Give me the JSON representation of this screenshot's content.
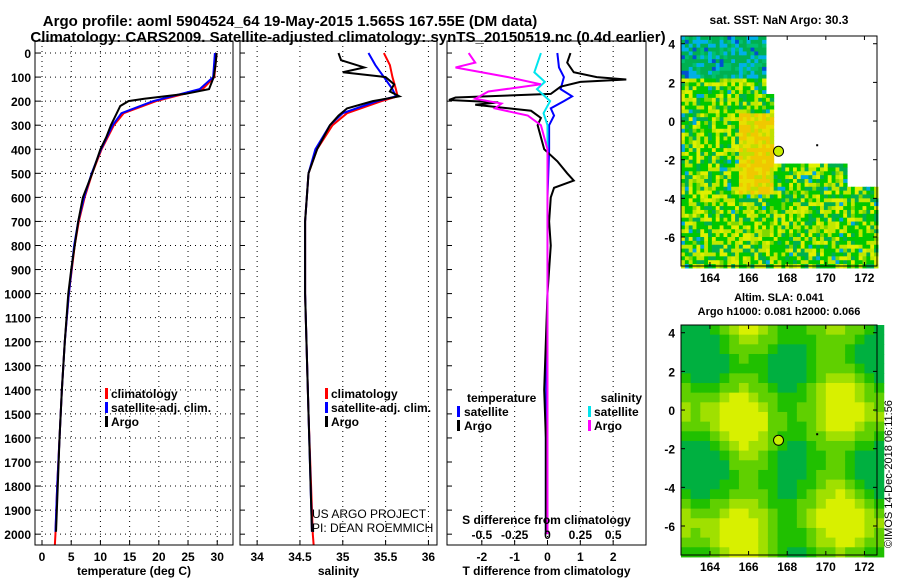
{
  "title_line1": "Argo profile: aoml 5904524_64 19-May-2015 1.565S 167.55E (DM data)",
  "title_line2": "Climatology: CARS2009. Satellite-adjusted climatology: synTS_20150519.nc (0.4d earlier)",
  "credit": "©IMOS 14-Dec-2018 06:11:56",
  "colors": {
    "argo": "#000000",
    "climatology": "#ff0000",
    "satellite": "#0000ff",
    "sal_sat": "#00e5ee",
    "sal_argo": "#ff00ff"
  },
  "chart_data": [
    {
      "type": "line",
      "xlabel": "temperature (deg C)",
      "ylabel": "",
      "xlim": [
        -1.2,
        32.7
      ],
      "ylim": [
        2045,
        -50
      ],
      "xticks": [
        0,
        5,
        10,
        15,
        20,
        25,
        30
      ],
      "yticks": [
        0,
        100,
        200,
        300,
        400,
        500,
        600,
        700,
        800,
        900,
        1000,
        1100,
        1200,
        1300,
        1400,
        1500,
        1600,
        1700,
        1800,
        1900,
        2000
      ],
      "legend": [
        "climatology",
        "satellite-adj. clim.",
        "Argo"
      ],
      "legend_position": "lower-middle",
      "series": [
        {
          "name": "climatology",
          "color": "#ff0000",
          "depth": [
            0,
            100,
            150,
            200,
            250,
            300,
            400,
            500,
            600,
            700,
            800,
            1000,
            1200,
            1400,
            1600,
            1800,
            2000,
            2045
          ],
          "values": [
            29.9,
            29.5,
            27.5,
            19.5,
            14.0,
            12.3,
            10.2,
            8.6,
            7.3,
            6.3,
            5.6,
            4.6,
            3.9,
            3.4,
            3.0,
            2.6,
            2.3,
            2.2
          ]
        },
        {
          "name": "satellite-adj. clim.",
          "color": "#0000ff",
          "depth": [
            0,
            100,
            150,
            200,
            250,
            300,
            400,
            500,
            600,
            700,
            800,
            1000,
            1200,
            1400,
            1600,
            1800,
            1990
          ],
          "values": [
            29.6,
            29.3,
            27.0,
            19.0,
            13.6,
            12.1,
            10.1,
            8.5,
            7.2,
            6.2,
            5.5,
            4.6,
            3.9,
            3.4,
            3.0,
            2.6,
            2.3
          ]
        },
        {
          "name": "Argo",
          "color": "#000000",
          "depth": [
            0,
            50,
            100,
            150,
            170,
            190,
            200,
            220,
            250,
            300,
            350,
            400,
            500,
            600,
            700,
            800,
            900,
            1000,
            1200,
            1400,
            1600,
            1800,
            1990
          ],
          "values": [
            29.9,
            29.7,
            29.4,
            28.6,
            24.5,
            17.5,
            14.8,
            13.4,
            12.8,
            11.8,
            11.0,
            10.0,
            8.6,
            7.0,
            6.2,
            5.6,
            5.0,
            4.5,
            3.9,
            3.4,
            3.0,
            2.7,
            2.4
          ]
        }
      ]
    },
    {
      "type": "line",
      "xlabel": "salinity",
      "xlim": [
        33.8,
        36.1
      ],
      "ylim": [
        2045,
        -50
      ],
      "xticks": [
        34,
        34.5,
        35,
        35.5,
        36
      ],
      "xtick_labels": [
        "34",
        "34.5",
        "35",
        "35.5",
        "36"
      ],
      "legend": [
        "climatology",
        "satellite-adj. clim.",
        "Argo"
      ],
      "annotation": [
        "US ARGO PROJECT",
        "PI: DEAN ROEMMICH"
      ],
      "series": [
        {
          "name": "climatology",
          "color": "#ff0000",
          "depth": [
            0,
            50,
            100,
            150,
            180,
            200,
            250,
            300,
            400,
            500,
            700,
            1000,
            1500,
            2000,
            2045
          ],
          "values": [
            35.48,
            35.55,
            35.58,
            35.62,
            35.64,
            35.45,
            35.05,
            34.88,
            34.7,
            34.6,
            34.56,
            34.56,
            34.6,
            34.65,
            34.66
          ]
        },
        {
          "name": "satellite-adj. clim.",
          "color": "#0000ff",
          "depth": [
            0,
            50,
            100,
            150,
            180,
            200,
            250,
            300,
            400,
            500,
            700,
            1000,
            1500,
            1990
          ],
          "values": [
            35.3,
            35.38,
            35.48,
            35.58,
            35.62,
            35.4,
            35.0,
            34.85,
            34.68,
            34.6,
            34.56,
            34.56,
            34.6,
            34.64
          ]
        },
        {
          "name": "Argo",
          "color": "#000000",
          "depth": [
            0,
            30,
            60,
            80,
            100,
            130,
            160,
            180,
            200,
            230,
            260,
            300,
            400,
            500,
            700,
            1000,
            1500,
            1990
          ],
          "values": [
            34.95,
            34.98,
            35.25,
            35.0,
            35.5,
            35.6,
            35.55,
            35.66,
            35.35,
            35.05,
            34.95,
            34.85,
            34.7,
            34.6,
            34.56,
            34.56,
            34.6,
            34.64
          ]
        }
      ]
    },
    {
      "type": "line",
      "xlabel": "T difference from climatology",
      "x2label": "S difference from climatology",
      "xlim": [
        -3.06,
        3.0
      ],
      "ylim": [
        2045,
        -50
      ],
      "xticks": [
        -2,
        -1,
        0,
        1,
        2
      ],
      "x2ticks": [
        -0.5,
        -0.25,
        0,
        0.25,
        0.5
      ],
      "x2tick_labels": [
        "-0.5",
        "-0.25",
        "0",
        "0.25",
        "0.5"
      ],
      "legend_temperature": {
        "title": "temperature",
        "items": [
          "satellite",
          "Argo"
        ]
      },
      "legend_salinity": {
        "title": "salinity",
        "items": [
          "satellite",
          "Argo"
        ]
      },
      "series": [
        {
          "name": "T satellite",
          "color": "#0000ff",
          "units": "T",
          "depth": [
            0,
            60,
            100,
            150,
            180,
            200,
            230,
            260,
            300,
            400,
            600,
            1000,
            1500,
            2000
          ],
          "values": [
            0.3,
            0.35,
            0.5,
            0.4,
            0.75,
            0.5,
            0.1,
            0.2,
            0.05,
            0.05,
            0.0,
            0.0,
            -0.05,
            -0.05
          ]
        },
        {
          "name": "T Argo",
          "color": "#000000",
          "units": "T",
          "depth": [
            0,
            40,
            80,
            100,
            110,
            120,
            140,
            170,
            185,
            195,
            205,
            215,
            240,
            270,
            300,
            400,
            450,
            500,
            530,
            560,
            600,
            700,
            800,
            1000,
            1400,
            1600,
            2000
          ],
          "values": [
            0.7,
            0.6,
            0.8,
            1.5,
            2.4,
            1.0,
            0.4,
            0.1,
            -2.8,
            -3.0,
            -1.5,
            -2.2,
            -0.5,
            -0.2,
            -0.3,
            -0.1,
            0.3,
            0.6,
            0.8,
            0.2,
            0.1,
            0.05,
            0.1,
            0.0,
            -0.1,
            -0.05,
            -0.05
          ]
        },
        {
          "name": "S satellite",
          "color": "#00e5ee",
          "units": "S",
          "depth": [
            0,
            80,
            120,
            150,
            200,
            250,
            300,
            500,
            1000,
            2000
          ],
          "values": [
            -0.05,
            -0.1,
            -0.02,
            -0.08,
            0.02,
            -0.03,
            0.0,
            0.0,
            0.0,
            0.0
          ]
        },
        {
          "name": "S Argo",
          "color": "#ff00ff",
          "units": "S",
          "depth": [
            0,
            40,
            60,
            100,
            130,
            160,
            190,
            210,
            230,
            260,
            300,
            400,
            600,
            1000,
            2000
          ],
          "values": [
            -0.6,
            -0.55,
            -0.7,
            -0.3,
            -0.05,
            -0.45,
            -0.55,
            -0.35,
            -0.4,
            -0.15,
            -0.05,
            0.0,
            0.0,
            0.0,
            0.0
          ]
        }
      ]
    },
    {
      "type": "heatmap",
      "title": "sat. SST: NaN Argo: 30.3",
      "xlim": [
        162.5,
        172.65
      ],
      "ylim": [
        -7.5,
        4.4
      ],
      "xticks": [
        164,
        166,
        168,
        170,
        172
      ],
      "yticks": [
        4,
        2,
        0,
        -2,
        -4,
        -6
      ],
      "argo_position": [
        167.55,
        -1.565
      ]
    },
    {
      "type": "heatmap",
      "title": "Altim. SLA: 0.041",
      "subtitle": "Argo h1000: 0.081 h2000: 0.066",
      "xlim": [
        162.5,
        172.65
      ],
      "ylim": [
        -7.5,
        4.4
      ],
      "xticks": [
        164,
        166,
        168,
        170,
        172
      ],
      "yticks": [
        4,
        2,
        0,
        -2,
        -4,
        -6
      ],
      "argo_position": [
        167.55,
        -1.565
      ]
    }
  ]
}
